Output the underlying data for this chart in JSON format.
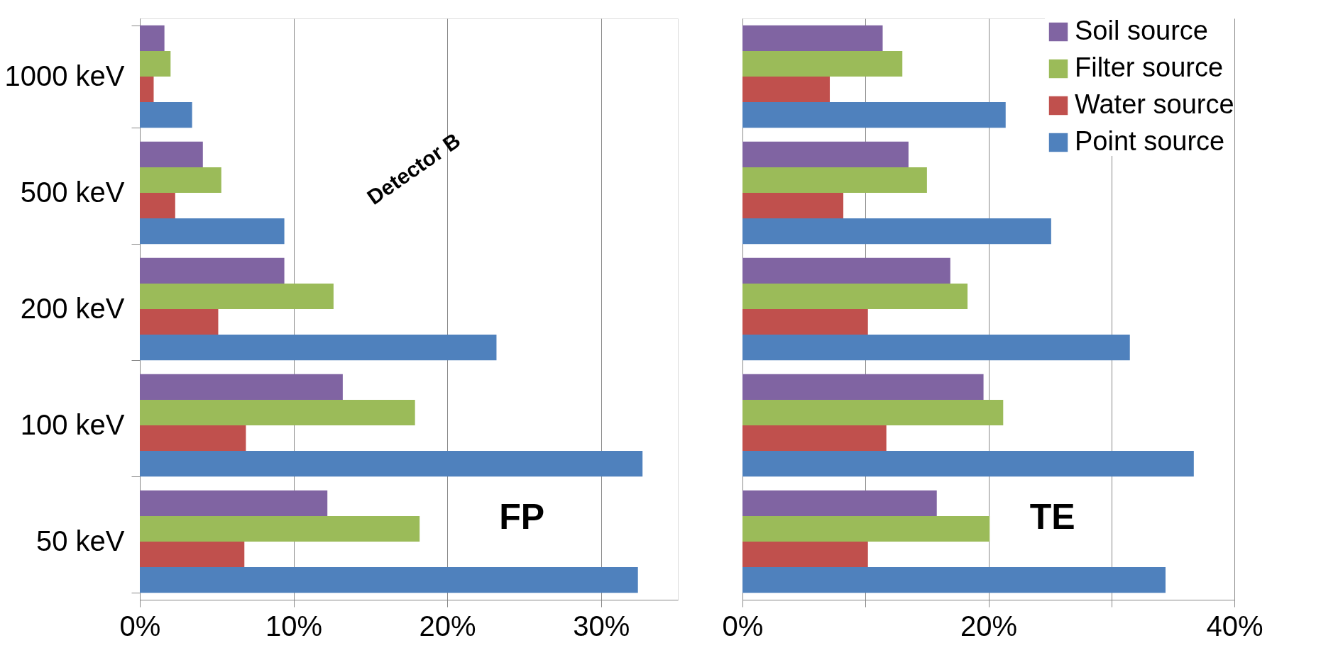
{
  "chart_data": [
    {
      "type": "bar",
      "orientation": "horizontal",
      "categories": [
        "1000 keV",
        "500 keV",
        "200 keV",
        "100 keV",
        "50 keV"
      ],
      "series": [
        {
          "color": "#8064a2",
          "values": [
            1.6,
            4.1,
            9.4,
            13.2,
            12.2
          ]
        },
        {
          "color": "#9bbb59",
          "values": [
            2.0,
            5.3,
            12.6,
            17.9,
            18.2
          ]
        },
        {
          "color": "#c0504d",
          "values": [
            0.9,
            2.3,
            5.1,
            6.9,
            6.8
          ]
        },
        {
          "color": "#4f81bd",
          "values": [
            3.4,
            9.4,
            23.2,
            32.7,
            32.4
          ]
        }
      ],
      "xlim": [
        0,
        35
      ],
      "xticks": [
        {
          "value": 0,
          "label": "0%"
        },
        {
          "value": 10,
          "label": "10%"
        },
        {
          "value": 20,
          "label": "20%"
        },
        {
          "value": 30,
          "label": "30%"
        }
      ],
      "grid": "x",
      "annotations": [
        "Detector B",
        "FP"
      ]
    },
    {
      "type": "bar",
      "orientation": "horizontal",
      "categories": [
        null,
        null,
        null,
        null,
        null
      ],
      "series": [
        {
          "name": "Soil source",
          "color": "#8064a2",
          "values": [
            11.4,
            13.5,
            16.9,
            19.6,
            15.8
          ]
        },
        {
          "name": "Filter source",
          "color": "#9bbb59",
          "values": [
            13.0,
            15.0,
            18.3,
            21.2,
            20.1
          ]
        },
        {
          "name": "Water source",
          "color": "#c0504d",
          "values": [
            7.1,
            8.2,
            10.2,
            11.7,
            10.2
          ]
        },
        {
          "name": "Point source",
          "color": "#4f81bd",
          "values": [
            21.4,
            25.1,
            31.5,
            36.7,
            34.4
          ]
        }
      ],
      "xlim": [
        0,
        40
      ],
      "xticks": [
        {
          "value": 0,
          "label": "0%"
        },
        {
          "value": 10,
          "label": null
        },
        {
          "value": 20,
          "label": "20%"
        },
        {
          "value": 30,
          "label": null
        },
        {
          "value": 40,
          "label": "40%"
        }
      ],
      "grid": "x",
      "legend": "top right",
      "tick_labels": "x",
      "annotations": [
        "TE"
      ]
    }
  ]
}
